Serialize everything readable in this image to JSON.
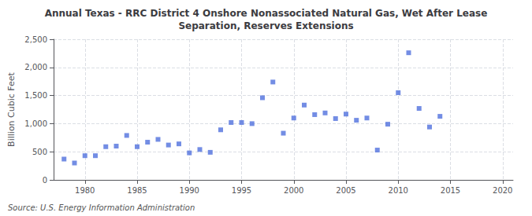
{
  "chart_data": {
    "type": "scatter",
    "title": "Annual Texas - RRC District 4 Onshore Nonassociated Natural Gas, Wet After Lease\nSeparation, Reserves Extensions",
    "ylabel": "Billion Cubic Feet",
    "annotations": [
      "Source: U.S. Energy Information Administration"
    ],
    "x": [
      1978,
      1979,
      1980,
      1981,
      1982,
      1983,
      1984,
      1985,
      1986,
      1987,
      1988,
      1989,
      1990,
      1991,
      1992,
      1993,
      1994,
      1995,
      1996,
      1997,
      1998,
      1999,
      2000,
      2001,
      2002,
      2003,
      2004,
      2005,
      2006,
      2007,
      2008,
      2009,
      2010,
      2011,
      2012,
      2013,
      2014
    ],
    "values": [
      370,
      300,
      430,
      430,
      590,
      600,
      790,
      590,
      670,
      720,
      620,
      640,
      480,
      540,
      490,
      890,
      1020,
      1020,
      1000,
      1460,
      1740,
      830,
      1100,
      1330,
      1160,
      1190,
      1090,
      1170,
      1060,
      1100,
      530,
      990,
      1550,
      2260,
      1270,
      940,
      1130
    ],
    "xlim": [
      1977,
      2021
    ],
    "xticks": [
      1980,
      1985,
      1990,
      1995,
      2000,
      2005,
      2010,
      2015,
      2020
    ],
    "ylim": [
      0,
      2500
    ],
    "yticks": [
      0,
      500,
      {
        "value": 1000,
        "label": "1,000"
      },
      {
        "value": 1500,
        "label": "1,500"
      },
      {
        "value": 2000,
        "label": "2,000"
      },
      {
        "value": 2500,
        "label": "2,500"
      }
    ],
    "marker": "square",
    "grid": true
  }
}
